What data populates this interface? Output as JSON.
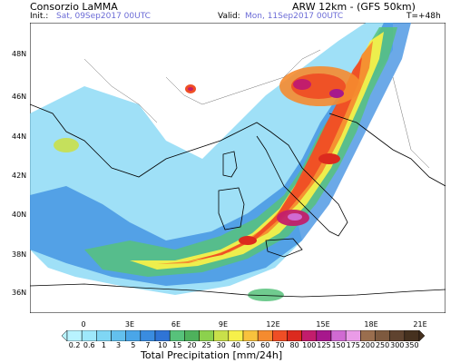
{
  "header": {
    "org": "Consorzio LaMMA",
    "model": "ARW 12km - (GFS 50km)",
    "init_label": "Init.:",
    "init_value": "Sat, 09Sep2017 00UTC",
    "valid_label": "Valid:",
    "valid_value": "Mon, 11Sep2017 00UTC",
    "lead": "T=+48h"
  },
  "map": {
    "lat_labels": [
      "48N",
      "46N",
      "44N",
      "42N",
      "40N",
      "38N",
      "36N"
    ],
    "lon_labels": [
      "0",
      "3E",
      "6E",
      "9E",
      "12E",
      "15E",
      "18E",
      "21E"
    ]
  },
  "colorbar": {
    "labels": [
      "0.2",
      "0.6",
      "1",
      "3",
      "5",
      "7",
      "10",
      "15",
      "20",
      "25",
      "30",
      "40",
      "50",
      "60",
      "70",
      "80",
      "100",
      "125",
      "150",
      "175",
      "200",
      "250",
      "300",
      "350"
    ],
    "colors": [
      "#b8f3ff",
      "#9ee8fb",
      "#7fd6f4",
      "#63c0ee",
      "#4aa6e8",
      "#3a8ce0",
      "#2f74d6",
      "#57c27b",
      "#4eb15c",
      "#8cd14d",
      "#c9e04a",
      "#f6f04a",
      "#f8c23d",
      "#f58b2f",
      "#ef4e25",
      "#dc2a1e",
      "#c21d6c",
      "#a7188c",
      "#d06ad2",
      "#ea9be7",
      "#9a6e4e",
      "#7e5a3f",
      "#5f432f",
      "#46311f"
    ],
    "title": "Total Precipitation [mm/24h]"
  }
}
